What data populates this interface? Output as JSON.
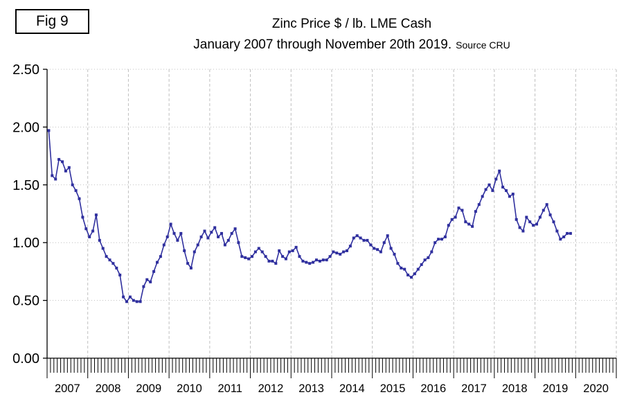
{
  "fig_label": "Fig 9",
  "title": {
    "line1": "Zinc Price $ / lb. LME Cash",
    "line2": "January 2007 through November 20th 2019.",
    "source": "Source CRU"
  },
  "chart_data": {
    "type": "line",
    "title": "Zinc Price $ / lb. LME Cash",
    "subtitle": "January 2007 through November 20th 2019. Source CRU",
    "xlabel": "",
    "ylabel": "",
    "ylim": [
      0,
      2.5
    ],
    "yticks": [
      "0.00",
      "0.50",
      "1.00",
      "1.50",
      "2.00",
      "2.50"
    ],
    "x_year_labels": [
      "2007",
      "2008",
      "2009",
      "2010",
      "2011",
      "2012",
      "2013",
      "2014",
      "2015",
      "2016",
      "2017",
      "2018",
      "2019",
      "2020"
    ],
    "x_start": "2007-01",
    "x_end": "2019-11",
    "frequency": "monthly",
    "grid": true,
    "legend": "none",
    "marker": "square",
    "values": [
      1.97,
      1.58,
      1.55,
      1.72,
      1.7,
      1.62,
      1.65,
      1.5,
      1.45,
      1.38,
      1.22,
      1.12,
      1.05,
      1.1,
      1.24,
      1.02,
      0.95,
      0.88,
      0.85,
      0.82,
      0.78,
      0.72,
      0.53,
      0.49,
      0.53,
      0.5,
      0.49,
      0.49,
      0.62,
      0.68,
      0.66,
      0.75,
      0.83,
      0.88,
      0.98,
      1.05,
      1.16,
      1.08,
      1.02,
      1.08,
      0.93,
      0.82,
      0.78,
      0.92,
      0.98,
      1.05,
      1.1,
      1.04,
      1.09,
      1.13,
      1.05,
      1.08,
      0.98,
      1.02,
      1.08,
      1.12,
      1.0,
      0.88,
      0.87,
      0.86,
      0.88,
      0.92,
      0.95,
      0.92,
      0.88,
      0.84,
      0.84,
      0.82,
      0.93,
      0.88,
      0.86,
      0.92,
      0.93,
      0.96,
      0.88,
      0.84,
      0.83,
      0.82,
      0.83,
      0.85,
      0.84,
      0.85,
      0.85,
      0.88,
      0.92,
      0.91,
      0.9,
      0.92,
      0.93,
      0.97,
      1.04,
      1.06,
      1.04,
      1.02,
      1.02,
      0.98,
      0.95,
      0.94,
      0.92,
      1.0,
      1.06,
      0.95,
      0.9,
      0.82,
      0.78,
      0.77,
      0.72,
      0.7,
      0.73,
      0.77,
      0.81,
      0.85,
      0.87,
      0.92,
      1.0,
      1.03,
      1.03,
      1.05,
      1.15,
      1.2,
      1.22,
      1.3,
      1.28,
      1.18,
      1.16,
      1.14,
      1.27,
      1.33,
      1.4,
      1.46,
      1.5,
      1.45,
      1.55,
      1.62,
      1.48,
      1.45,
      1.4,
      1.42,
      1.2,
      1.13,
      1.1,
      1.22,
      1.18,
      1.15,
      1.16,
      1.22,
      1.28,
      1.33,
      1.24,
      1.18,
      1.1,
      1.03,
      1.05,
      1.08,
      1.08
    ],
    "colors": {
      "line": "#2f2f9e",
      "grid": "#bfbfbf",
      "axis": "#000000",
      "text": "#000000"
    }
  }
}
